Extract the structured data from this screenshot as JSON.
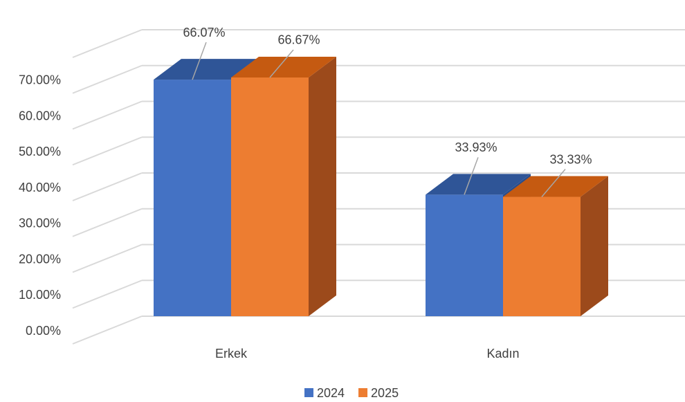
{
  "chart_data": {
    "type": "bar3d",
    "categories": [
      "Erkek",
      "Kadın"
    ],
    "series": [
      {
        "name": "2024",
        "color": "#4472c4",
        "values": [
          66.07,
          33.93
        ],
        "value_labels": [
          "66.07%",
          "33.93%"
        ]
      },
      {
        "name": "2025",
        "color": "#ed7d31",
        "values": [
          66.67,
          33.33
        ],
        "value_labels": [
          "66.67%",
          "33.33%"
        ]
      }
    ],
    "ylim": [
      0,
      80
    ],
    "yticks": [
      {
        "value": 0,
        "label": "0.00%"
      },
      {
        "value": 10,
        "label": "10.00%"
      },
      {
        "value": 20,
        "label": "20.00%"
      },
      {
        "value": 30,
        "label": "30.00%"
      },
      {
        "value": 40,
        "label": "40.00%"
      },
      {
        "value": 50,
        "label": "50.00%"
      },
      {
        "value": 60,
        "label": "60.00%"
      },
      {
        "value": 70,
        "label": "70.00%"
      }
    ],
    "grid": true,
    "legend": "bottom"
  }
}
